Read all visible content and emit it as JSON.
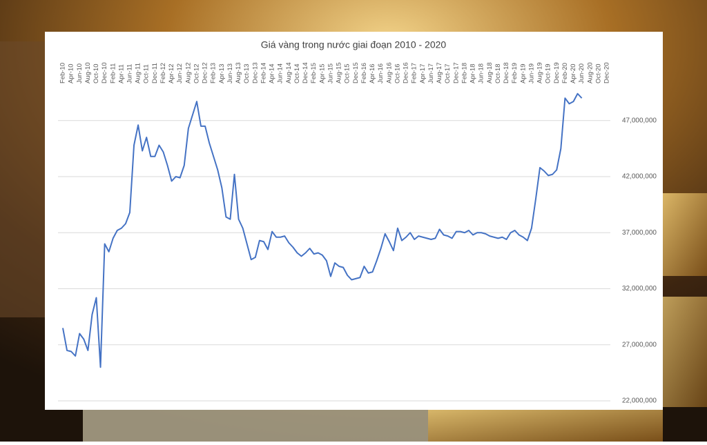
{
  "chart_data": {
    "type": "line",
    "title": "Giá vàng trong nước giai đoạn 2010 - 2020",
    "categories": [
      "Feb-10",
      null,
      "Apr-10",
      null,
      "Jun-10",
      null,
      "Aug-10",
      null,
      "Oct-10",
      null,
      "Dec-10",
      null,
      "Feb-11",
      null,
      "Apr-11",
      null,
      "Jun-11",
      null,
      "Aug-11",
      null,
      "Oct-11",
      null,
      "Dec-11",
      null,
      "Feb-12",
      null,
      "Apr-12",
      null,
      "Jun-12",
      null,
      "Aug-12",
      null,
      "Oct-12",
      null,
      "Dec-12",
      null,
      "Feb-13",
      null,
      "Apr-13",
      null,
      "Jun-13",
      null,
      "Aug-13",
      null,
      "Oct-13",
      null,
      "Dec-13",
      null,
      "Feb-14",
      null,
      "Apr-14",
      null,
      "Jun-14",
      null,
      "Aug-14",
      null,
      "Oct-14",
      null,
      "Dec-14",
      null,
      "Feb-15",
      null,
      "Apr-15",
      null,
      "Jun-15",
      null,
      "Aug-15",
      null,
      "Oct-15",
      null,
      "Dec-15",
      null,
      "Feb-16",
      null,
      "Apr-16",
      null,
      "Jun-16",
      null,
      "Aug-16",
      null,
      "Oct-16",
      null,
      "Dec-16",
      null,
      "Feb-17",
      null,
      "Apr-17",
      null,
      "Jun-17",
      null,
      "Aug-17",
      null,
      "Oct-17",
      null,
      "Dec-17",
      null,
      "Feb-18",
      null,
      "Apr-18",
      null,
      "Jun-18",
      null,
      "Aug-18",
      null,
      "Oct-18",
      null,
      "Dec-18",
      null,
      "Feb-19",
      null,
      "Apr-19",
      null,
      "Jun-19",
      null,
      "Aug-19",
      null,
      "Oct-19",
      null,
      "Dec-19",
      null,
      "Feb-20",
      null,
      "Apr-20",
      null,
      "Jun-20",
      null,
      "Aug-20",
      null,
      "Oct-20",
      null,
      "Dec-20"
    ],
    "values": [
      28500000,
      26500000,
      26400000,
      26000000,
      28000000,
      27500000,
      26500000,
      29700000,
      31200000,
      25000000,
      36000000,
      35300000,
      36500000,
      37200000,
      37400000,
      37800000,
      38800000,
      44800000,
      46600000,
      44300000,
      45500000,
      43800000,
      43800000,
      44800000,
      44200000,
      43000000,
      41600000,
      42000000,
      41900000,
      43000000,
      46300000,
      47500000,
      48700000,
      46500000,
      46500000,
      45000000,
      43800000,
      42600000,
      41000000,
      38400000,
      38200000,
      42200000,
      38200000,
      37400000,
      36000000,
      34600000,
      34800000,
      36300000,
      36200000,
      35500000,
      37100000,
      36600000,
      36600000,
      36700000,
      36100000,
      35700000,
      35200000,
      34900000,
      35200000,
      35600000,
      35100000,
      35200000,
      35000000,
      34500000,
      33100000,
      34300000,
      34000000,
      33900000,
      33200000,
      32800000,
      32900000,
      33000000,
      34000000,
      33400000,
      33500000,
      34500000,
      35600000,
      36900000,
      36200000,
      35400000,
      37400000,
      36300000,
      36600000,
      37000000,
      36400000,
      36700000,
      36600000,
      36500000,
      36400000,
      36500000,
      37300000,
      36800000,
      36700000,
      36500000,
      37100000,
      37100000,
      37000000,
      37200000,
      36800000,
      37000000,
      37000000,
      36900000,
      36700000,
      36600000,
      36500000,
      36600000,
      36400000,
      37000000,
      37200000,
      36800000,
      36600000,
      36300000,
      37400000,
      40000000,
      42800000,
      42500000,
      42100000,
      42200000,
      42600000,
      44500000,
      49000000,
      48500000,
      48700000,
      49400000,
      49000000,
      null,
      null,
      null,
      null,
      null,
      null
    ],
    "color": "#4472c4",
    "ylim": [
      22000000,
      50000000
    ],
    "yticks": [
      {
        "value": 22000000,
        "label": "22,000,000"
      },
      {
        "value": 27000000,
        "label": "27,000,000"
      },
      {
        "value": 32000000,
        "label": "32,000,000"
      },
      {
        "value": 37000000,
        "label": "37,000,000"
      },
      {
        "value": 42000000,
        "label": "42,000,000"
      },
      {
        "value": 47000000,
        "label": "47,000,000"
      }
    ],
    "grid": true
  }
}
